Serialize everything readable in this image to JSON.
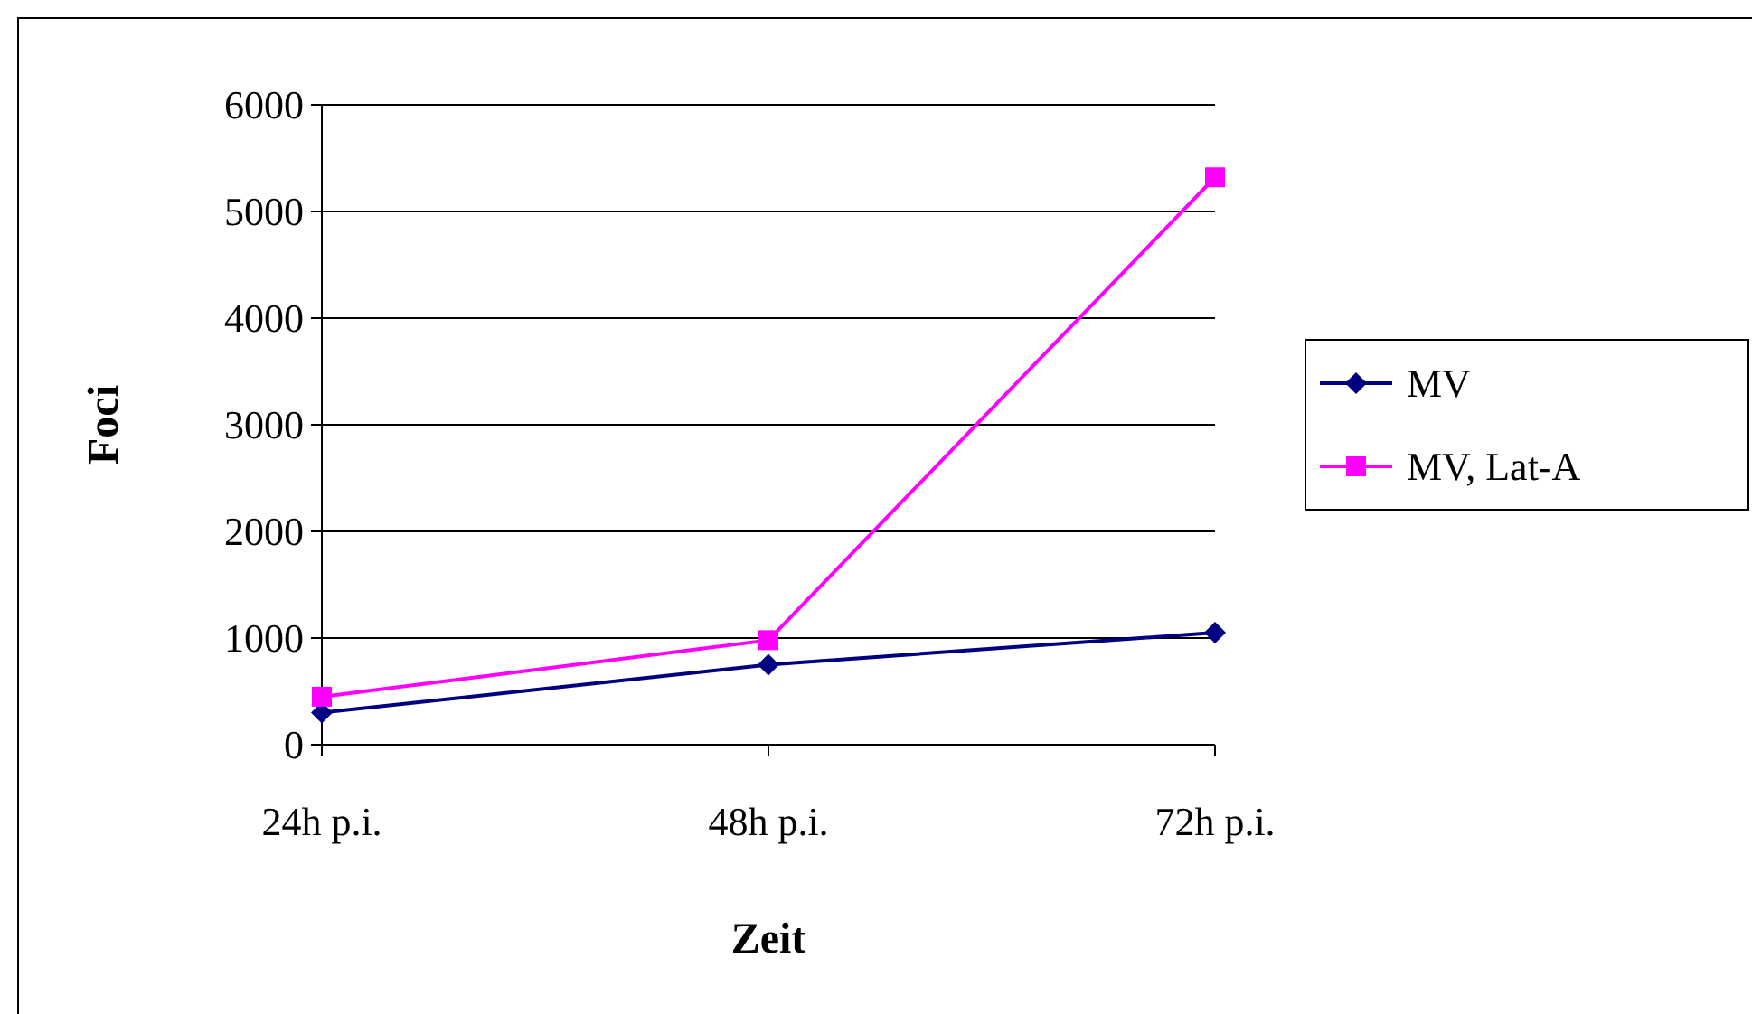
{
  "chart_data": {
    "type": "line",
    "xlabel": "Zeit",
    "ylabel": "Foci",
    "categories": [
      "24h p.i.",
      "48h p.i.",
      "72h p.i."
    ],
    "series": [
      {
        "name": "MV",
        "color": "#000080",
        "marker": "diamond",
        "values": [
          300,
          750,
          1050
        ]
      },
      {
        "name": "MV, Lat-A",
        "color": "#ff00ff",
        "marker": "square",
        "values": [
          450,
          980,
          5320
        ]
      }
    ],
    "ylim": [
      0,
      6000
    ],
    "yticks": [
      0,
      1000,
      2000,
      3000,
      4000,
      5000,
      6000
    ],
    "grid": "y",
    "legend": "right"
  }
}
